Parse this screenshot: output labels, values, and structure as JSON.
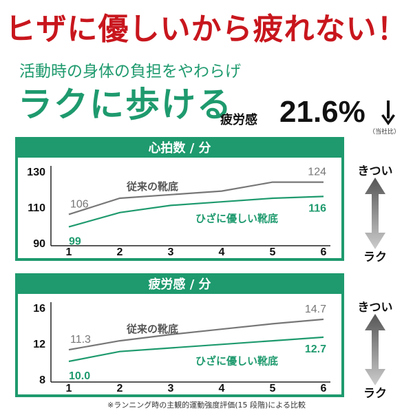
{
  "headline": "ヒザに優しいから疲れない！",
  "subline": "活動時の身体の負担をやわらげ",
  "big_title": "ラクに歩ける",
  "fatigue": {
    "label": "疲労感",
    "value": "21.6%",
    "note": "（当社比）"
  },
  "side_scale": {
    "top": "きつい",
    "bottom": "ラク"
  },
  "footnote": "※ランニング時の主観的運動強度評価(15 段階)による比較",
  "colors": {
    "green": "#1e9a6e",
    "gray": "#777777",
    "red": "#c8161d"
  },
  "icons": {
    "down_arrow": "down-arrow-icon",
    "scale_arrow": "up-down-arrow-icon"
  },
  "chart_data": [
    {
      "type": "line",
      "title": "心拍数 / 分",
      "x": [
        1,
        2,
        3,
        4,
        5,
        6
      ],
      "ylim": [
        90,
        130
      ],
      "yticks": [
        90,
        110,
        130
      ],
      "series": [
        {
          "name": "従来の靴底",
          "values": [
            106,
            115,
            117,
            119,
            124,
            124
          ],
          "start_label": "106",
          "end_label": "124"
        },
        {
          "name": "ひざに優しい靴底",
          "values": [
            99,
            107,
            111,
            113,
            115,
            116
          ],
          "start_label": "99",
          "end_label": "116"
        }
      ]
    },
    {
      "type": "line",
      "title": "疲労感 / 分",
      "x": [
        1,
        2,
        3,
        4,
        5,
        6
      ],
      "ylim": [
        8,
        16
      ],
      "yticks": [
        8,
        12,
        16
      ],
      "series": [
        {
          "name": "従来の靴底",
          "values": [
            11.3,
            12.3,
            13.0,
            13.6,
            14.2,
            14.7
          ],
          "start_label": "11.3",
          "end_label": "14.7"
        },
        {
          "name": "ひざに優しい靴底",
          "values": [
            10.0,
            11.1,
            11.5,
            11.9,
            12.3,
            12.7
          ],
          "start_label": "10.0",
          "end_label": "12.7"
        }
      ]
    }
  ]
}
